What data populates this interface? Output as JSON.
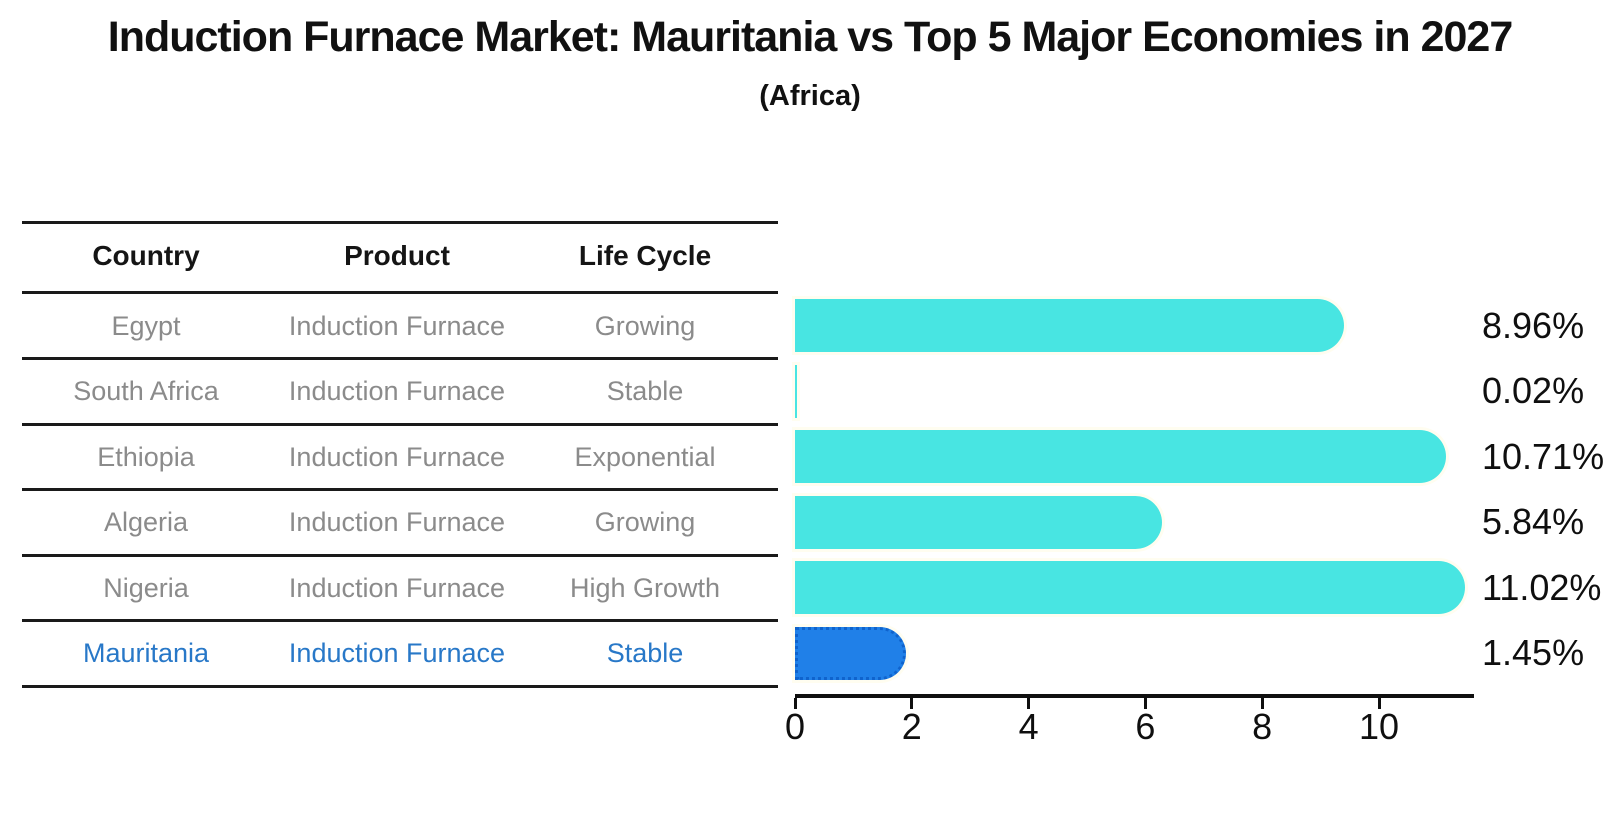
{
  "title": "Induction Furnace Market: Mauritania vs Top 5 Major Economies in 2027",
  "subtitle": "(Africa)",
  "table": {
    "columns": [
      "Country",
      "Product",
      "Life Cycle"
    ],
    "rows": [
      {
        "country": "Egypt",
        "product": "Induction Furnace",
        "life_cycle": "Growing",
        "value": 8.96,
        "label": "8.96%",
        "highlight": false
      },
      {
        "country": "South Africa",
        "product": "Induction Furnace",
        "life_cycle": "Stable",
        "value": 0.02,
        "label": "0.02%",
        "highlight": false
      },
      {
        "country": "Ethiopia",
        "product": "Induction Furnace",
        "life_cycle": "Exponential",
        "value": 10.71,
        "label": "10.71%",
        "highlight": false
      },
      {
        "country": "Algeria",
        "product": "Induction Furnace",
        "life_cycle": "Growing",
        "value": 5.84,
        "label": "5.84%",
        "highlight": false
      },
      {
        "country": "Nigeria",
        "product": "Induction Furnace",
        "life_cycle": "High Growth",
        "value": 11.02,
        "label": "11.02%",
        "highlight": false
      },
      {
        "country": "Mauritania",
        "product": "Induction Furnace",
        "life_cycle": "Stable",
        "value": 1.45,
        "label": "1.45%",
        "highlight": true
      }
    ]
  },
  "chart_data": {
    "type": "bar",
    "orientation": "horizontal",
    "title": "Induction Furnace Market: Mauritania vs Top 5 Major Economies in 2027",
    "subtitle": "(Africa)",
    "categories": [
      "Egypt",
      "South Africa",
      "Ethiopia",
      "Algeria",
      "Nigeria",
      "Mauritania"
    ],
    "values": [
      8.96,
      0.02,
      10.71,
      5.84,
      11.02,
      1.45
    ],
    "value_labels": [
      "8.96%",
      "0.02%",
      "10.71%",
      "5.84%",
      "11.02%",
      "1.45%"
    ],
    "xlabel": "",
    "ylabel": "",
    "xticks": [
      0,
      2,
      4,
      6,
      8,
      10
    ],
    "xlim": [
      0,
      11.6
    ],
    "grid": false,
    "legend": false,
    "highlight_category": "Mauritania"
  },
  "colors": {
    "bar_default": "#48E5E2",
    "bar_highlight": "#2080E8",
    "highlight_text": "#2878C8",
    "row_text": "#8b8b8b",
    "header_text": "#151515",
    "rule": "#1a1a1a",
    "label_text": "#0f0f0f"
  },
  "axis": {
    "tick_labels": [
      "0",
      "2",
      "4",
      "6",
      "8",
      "10"
    ]
  }
}
